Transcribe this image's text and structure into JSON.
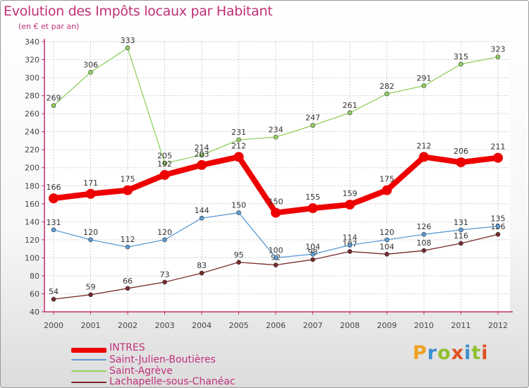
{
  "header": {
    "title": "Evolution des Impôts locaux par Habitant",
    "subtitle": "(en € et par an)"
  },
  "logo": {
    "letters": [
      "P",
      "r",
      "o",
      "x",
      "i",
      "t",
      "i"
    ],
    "colors": [
      "#f0a020",
      "#3a8fd0",
      "#90c030",
      "#e05020",
      "#3a8fd0",
      "#90c030",
      "#e05020"
    ]
  },
  "chart_data": {
    "type": "line",
    "title": "Evolution des Impôts locaux par Habitant",
    "subtitle": "(en € et par an)",
    "xlabel": "",
    "ylabel": "",
    "x": [
      "2000",
      "2001",
      "2002",
      "2003",
      "2004",
      "2005",
      "2006",
      "2007",
      "2008",
      "2009",
      "2010",
      "2011",
      "2012"
    ],
    "yticks": [
      40,
      60,
      80,
      100,
      120,
      140,
      160,
      180,
      200,
      220,
      240,
      260,
      280,
      300,
      320,
      340
    ],
    "ylim": [
      40,
      340
    ],
    "series": [
      {
        "name": "INTRES",
        "color": "#ee0000",
        "width": "thick",
        "values": [
          166,
          171,
          175,
          192,
          203,
          212,
          150,
          155,
          159,
          175,
          212,
          206,
          211
        ]
      },
      {
        "name": "Saint-Julien-Boutières",
        "color": "#5b9bd5",
        "width": "thin",
        "values": [
          131,
          120,
          112,
          120,
          144,
          150,
          100,
          104,
          114,
          120,
          126,
          131,
          135
        ]
      },
      {
        "name": "Saint-Agrève",
        "color": "#90d060",
        "width": "thin",
        "values": [
          269,
          306,
          333,
          205,
          214,
          231,
          234,
          247,
          261,
          282,
          291,
          315,
          323
        ]
      },
      {
        "name": "Lachapelle-sous-Chanéac",
        "color": "#7a2a2a",
        "width": "thin",
        "values": [
          54,
          59,
          66,
          73,
          83,
          95,
          92,
          98,
          107,
          104,
          108,
          116,
          126
        ]
      }
    ],
    "legend_position": "bottom-left"
  }
}
